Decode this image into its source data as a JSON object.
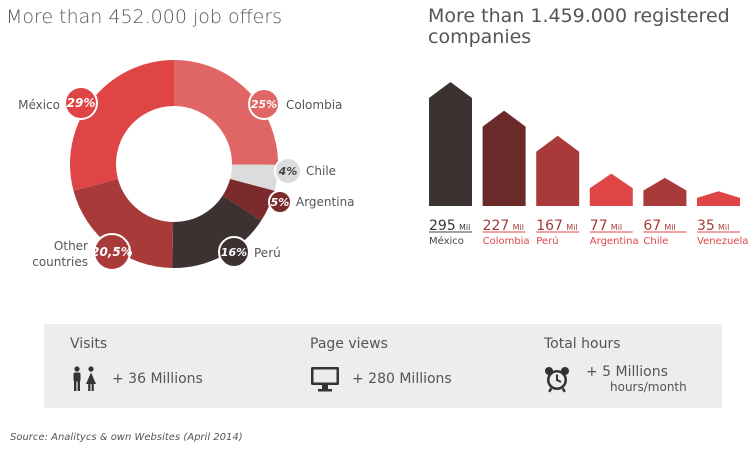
{
  "chart_data": [
    {
      "type": "pie",
      "title": "More than 452.000 job offers",
      "slices": [
        {
          "label": "Colombia",
          "value": 25,
          "display": "25%",
          "color": "#e06565"
        },
        {
          "label": "Chile",
          "value": 4,
          "display": "4%",
          "color": "#dcdcdc"
        },
        {
          "label": "Argentina",
          "value": 5,
          "display": "5%",
          "color": "#7b2b2b"
        },
        {
          "label": "Perú",
          "value": 16,
          "display": "16%",
          "color": "#3c3232"
        },
        {
          "label": "Other countries",
          "value": 20.5,
          "display": "20,5%",
          "color": "#a83a3a"
        },
        {
          "label": "México",
          "value": 29,
          "display": "29%",
          "color": "#e04545"
        }
      ]
    },
    {
      "type": "bar",
      "title": "More than 1.459.000 registered companies",
      "unit": "Mil",
      "categories": [
        "México",
        "Colombia",
        "Perú",
        "Argentina",
        "Chile",
        "Venezuela"
      ],
      "values": [
        295,
        227,
        167,
        77,
        67,
        35
      ],
      "colors": [
        "#3c3232",
        "#6b2a2a",
        "#a83a3a",
        "#e04545",
        "#a83a3a",
        "#e04545"
      ]
    }
  ],
  "stats": [
    {
      "label": "Visits",
      "value": "+ 36 Millions",
      "icon": "people-icon"
    },
    {
      "label": "Page views",
      "value": "+ 280 Millions",
      "icon": "monitor-icon"
    },
    {
      "label": "Total hours",
      "value": "+ 5 Millions",
      "subvalue": "hours/month",
      "icon": "alarm-clock-icon"
    }
  ],
  "source": {
    "prefix": "Source:",
    "text": "Analitycs & own Websites (April 2014)"
  }
}
